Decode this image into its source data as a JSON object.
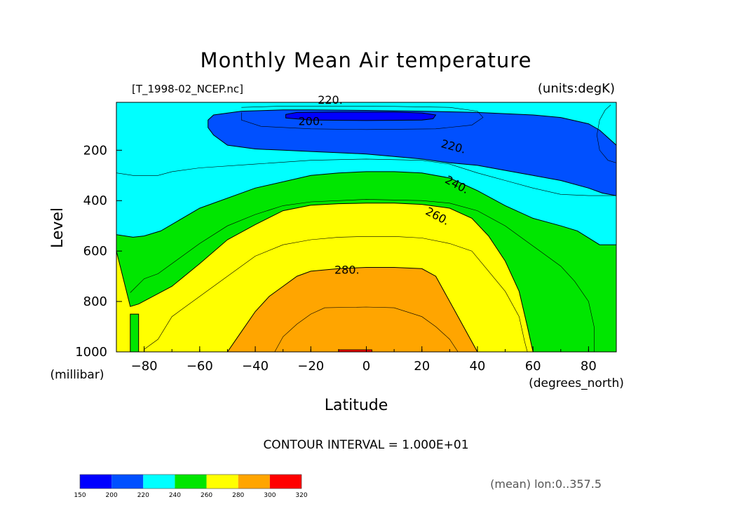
{
  "chart_data": {
    "type": "contour",
    "title": "Monthly Mean Air temperature",
    "file_label": "[T_1998-02_NCEP.nc]",
    "units_label": "(units:degK)",
    "xlabel": "Latitude",
    "x_units": "(degrees_north)",
    "ylabel": "Level",
    "y_units": "(millibar)",
    "xlim": [
      -90,
      90
    ],
    "ylim": [
      1000,
      10
    ],
    "y_inverted": true,
    "x_ticks": [
      -80,
      -60,
      -40,
      -20,
      0,
      20,
      40,
      60,
      80
    ],
    "x_tick_labels": [
      "−80",
      "−60",
      "−40",
      "−20",
      "0",
      "20",
      "40",
      "60",
      "80"
    ],
    "y_ticks": [
      200,
      400,
      600,
      800,
      1000
    ],
    "y_tick_labels": [
      "200",
      "400",
      "600",
      "800",
      "1000"
    ],
    "contour_interval_text": "CONTOUR INTERVAL = 1.000E+01",
    "contour_interval": 10,
    "contour_labels": [
      {
        "text": "220.",
        "lat": -13,
        "lev": 15
      },
      {
        "text": "200.",
        "lat": -20,
        "lev": 100
      },
      {
        "text": "220.",
        "lat": 31,
        "lev": 200
      },
      {
        "text": "240.",
        "lat": 32,
        "lev": 350
      },
      {
        "text": "260.",
        "lat": 25,
        "lev": 475
      },
      {
        "text": "280.",
        "lat": -7,
        "lev": 690
      }
    ],
    "colorbar": {
      "bounds": [
        150,
        200,
        220,
        240,
        260,
        280,
        300,
        320
      ],
      "colors": [
        "#0000ff",
        "#0050ff",
        "#00ffff",
        "#00e600",
        "#ffff00",
        "#ffa500",
        "#ff0000"
      ],
      "labels": [
        "150",
        "200",
        "220",
        "240",
        "260",
        "280",
        "300",
        "320"
      ]
    },
    "regions": [
      {
        "level": 220,
        "points": [
          [
            -90,
            10
          ],
          [
            90,
            10
          ],
          [
            90,
            1000
          ],
          [
            -90,
            1000
          ]
        ]
      },
      {
        "level": 240,
        "points": [
          [
            -90,
            535
          ],
          [
            -84,
            545
          ],
          [
            -80,
            540
          ],
          [
            -74,
            520
          ],
          [
            -60,
            430
          ],
          [
            -40,
            350
          ],
          [
            -20,
            300
          ],
          [
            -10,
            290
          ],
          [
            0,
            285
          ],
          [
            10,
            285
          ],
          [
            20,
            290
          ],
          [
            30,
            310
          ],
          [
            40,
            360
          ],
          [
            50,
            420
          ],
          [
            60,
            470
          ],
          [
            70,
            500
          ],
          [
            76,
            520
          ],
          [
            84,
            575
          ],
          [
            90,
            575
          ],
          [
            90,
            1000
          ],
          [
            -90,
            1000
          ]
        ]
      },
      {
        "level": 260,
        "points": [
          [
            -90,
            600
          ],
          [
            -85,
            820
          ],
          [
            -82,
            810
          ],
          [
            -70,
            740
          ],
          [
            -60,
            650
          ],
          [
            -50,
            555
          ],
          [
            -40,
            495
          ],
          [
            -30,
            440
          ],
          [
            -20,
            418
          ],
          [
            -10,
            412
          ],
          [
            0,
            410
          ],
          [
            10,
            410
          ],
          [
            20,
            415
          ],
          [
            30,
            430
          ],
          [
            38,
            470
          ],
          [
            44,
            540
          ],
          [
            50,
            640
          ],
          [
            55,
            760
          ],
          [
            58,
            900
          ],
          [
            60,
            1000
          ],
          [
            -82,
            1000
          ],
          [
            -82,
            850
          ],
          [
            -85,
            850
          ],
          [
            -85,
            1000
          ],
          [
            -90,
            1000
          ]
        ]
      },
      {
        "level": 280,
        "points": [
          [
            -50,
            1000
          ],
          [
            -45,
            920
          ],
          [
            -40,
            840
          ],
          [
            -35,
            780
          ],
          [
            -30,
            740
          ],
          [
            -25,
            700
          ],
          [
            -20,
            680
          ],
          [
            -10,
            670
          ],
          [
            0,
            665
          ],
          [
            10,
            665
          ],
          [
            20,
            670
          ],
          [
            25,
            700
          ],
          [
            28,
            760
          ],
          [
            32,
            840
          ],
          [
            36,
            920
          ],
          [
            40,
            1000
          ]
        ]
      },
      {
        "level": 200,
        "points": [
          [
            -57,
            80
          ],
          [
            -55,
            60
          ],
          [
            -45,
            45
          ],
          [
            -30,
            40
          ],
          [
            -20,
            40
          ],
          [
            0,
            42
          ],
          [
            20,
            45
          ],
          [
            40,
            50
          ],
          [
            60,
            60
          ],
          [
            70,
            70
          ],
          [
            80,
            95
          ],
          [
            84,
            120
          ],
          [
            90,
            180
          ],
          [
            90,
            380
          ],
          [
            85,
            370
          ],
          [
            80,
            350
          ],
          [
            70,
            320
          ],
          [
            60,
            300
          ],
          [
            50,
            280
          ],
          [
            40,
            260
          ],
          [
            30,
            250
          ],
          [
            20,
            235
          ],
          [
            10,
            225
          ],
          [
            0,
            215
          ],
          [
            -10,
            210
          ],
          [
            -20,
            205
          ],
          [
            -30,
            200
          ],
          [
            -40,
            195
          ],
          [
            -50,
            180
          ],
          [
            -55,
            140
          ],
          [
            -57,
            110
          ]
        ]
      },
      {
        "level": 150,
        "points": [
          [
            -29,
            58
          ],
          [
            -25,
            50
          ],
          [
            -10,
            48
          ],
          [
            10,
            48
          ],
          [
            20,
            52
          ],
          [
            25,
            60
          ],
          [
            24,
            75
          ],
          [
            20,
            80
          ],
          [
            0,
            82
          ],
          [
            -20,
            80
          ],
          [
            -29,
            72
          ]
        ]
      }
    ],
    "contour_lines": [
      {
        "level": 210,
        "points": [
          [
            -45,
            30
          ],
          [
            -30,
            25
          ],
          [
            -10,
            25
          ],
          [
            10,
            26
          ],
          [
            30,
            30
          ],
          [
            40,
            45
          ],
          [
            42,
            70
          ],
          [
            38,
            100
          ],
          [
            25,
            115
          ],
          [
            0,
            118
          ],
          [
            -20,
            115
          ],
          [
            -38,
            105
          ],
          [
            -45,
            80
          ],
          [
            -45,
            50
          ]
        ]
      },
      {
        "level": 230,
        "points": [
          [
            -90,
            290
          ],
          [
            -84,
            300
          ],
          [
            -80,
            300
          ],
          [
            -75,
            300
          ],
          [
            -70,
            285
          ],
          [
            -60,
            270
          ],
          [
            -40,
            255
          ],
          [
            -20,
            240
          ],
          [
            0,
            235
          ],
          [
            20,
            240
          ],
          [
            30,
            255
          ],
          [
            40,
            290
          ],
          [
            50,
            320
          ],
          [
            60,
            350
          ],
          [
            70,
            375
          ],
          [
            80,
            380
          ],
          [
            90,
            380
          ]
        ]
      },
      {
        "level": 250,
        "points": [
          [
            -85,
            765
          ],
          [
            -80,
            710
          ],
          [
            -75,
            690
          ],
          [
            -70,
            650
          ],
          [
            -60,
            570
          ],
          [
            -50,
            500
          ],
          [
            -40,
            455
          ],
          [
            -30,
            420
          ],
          [
            -20,
            405
          ],
          [
            0,
            395
          ],
          [
            20,
            400
          ],
          [
            30,
            410
          ],
          [
            40,
            440
          ],
          [
            50,
            500
          ],
          [
            60,
            580
          ],
          [
            70,
            660
          ],
          [
            75,
            720
          ],
          [
            80,
            800
          ],
          [
            82,
            900
          ],
          [
            82,
            1000
          ]
        ]
      },
      {
        "level": 270,
        "points": [
          [
            -80,
            990
          ],
          [
            -75,
            950
          ],
          [
            -70,
            860
          ],
          [
            -60,
            780
          ],
          [
            -50,
            700
          ],
          [
            -40,
            620
          ],
          [
            -30,
            575
          ],
          [
            -20,
            555
          ],
          [
            -10,
            545
          ],
          [
            0,
            542
          ],
          [
            10,
            542
          ],
          [
            20,
            548
          ],
          [
            30,
            570
          ],
          [
            38,
            600
          ],
          [
            44,
            680
          ],
          [
            50,
            760
          ],
          [
            55,
            860
          ],
          [
            57,
            960
          ],
          [
            58,
            1000
          ]
        ]
      },
      {
        "level": 290,
        "points": [
          [
            -33,
            1000
          ],
          [
            -30,
            940
          ],
          [
            -25,
            890
          ],
          [
            -20,
            850
          ],
          [
            -15,
            825
          ],
          [
            0,
            822
          ],
          [
            10,
            825
          ],
          [
            20,
            860
          ],
          [
            25,
            900
          ],
          [
            30,
            950
          ],
          [
            33,
            1000
          ]
        ]
      },
      {
        "level": 200,
        "points": [
          [
            88,
            20
          ],
          [
            86,
            40
          ],
          [
            84,
            80
          ],
          [
            83,
            140
          ],
          [
            84,
            200
          ],
          [
            87,
            240
          ],
          [
            90,
            250
          ]
        ]
      }
    ],
    "small_red_patch": {
      "lat_range": [
        -10,
        2
      ],
      "lev": 1000
    }
  },
  "footer": {
    "mean_label": "(mean) lon:0..357.5"
  }
}
